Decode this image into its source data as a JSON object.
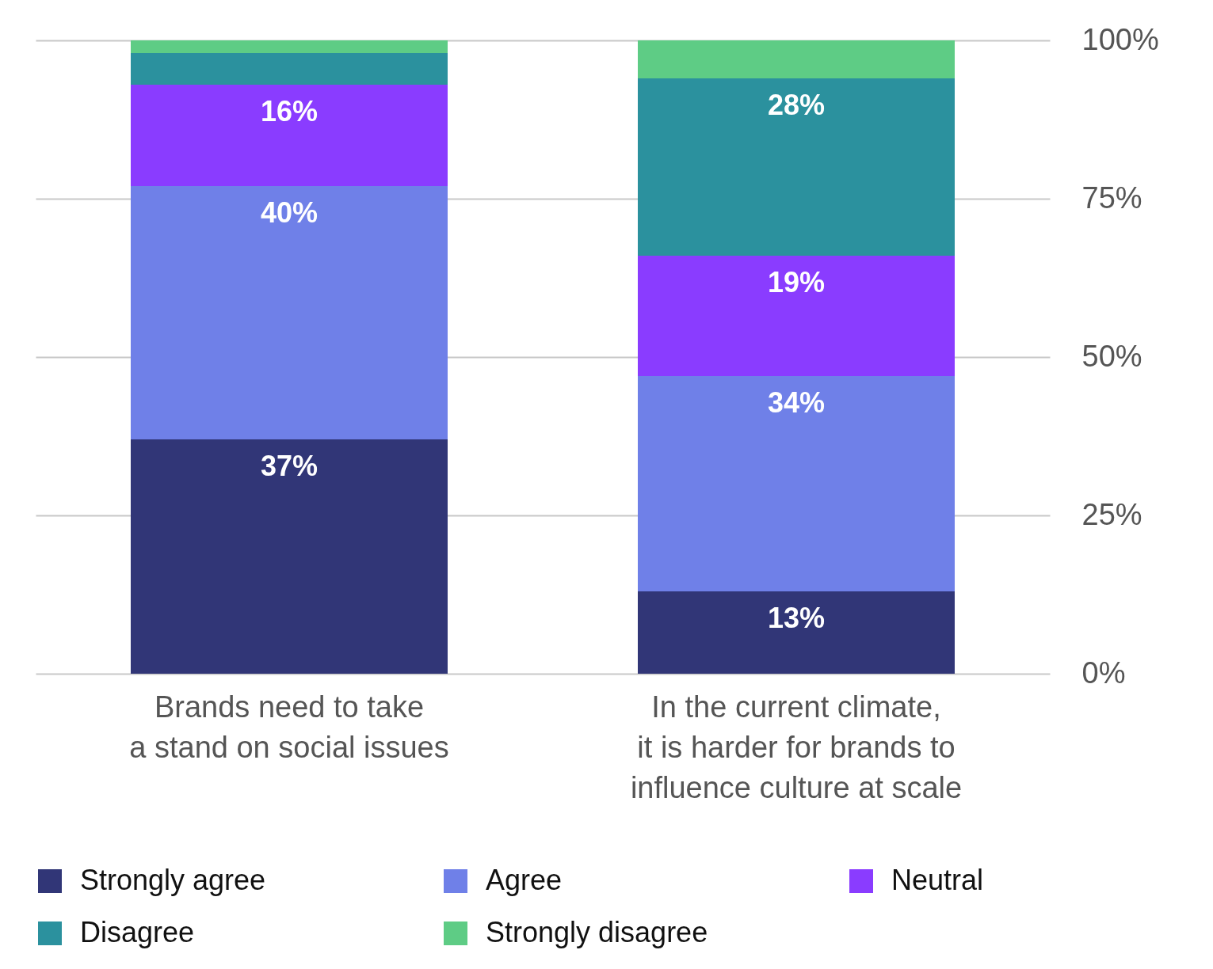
{
  "chart_data": {
    "type": "bar",
    "stacked": true,
    "categories": [
      "Brands need to take\na stand on social issues",
      "In the current climate,\nit is harder for brands to\ninfluence culture at scale"
    ],
    "series": [
      {
        "name": "Strongly agree",
        "color": "#313677",
        "values": [
          37,
          13
        ],
        "value_labels": [
          "37%",
          "13%"
        ]
      },
      {
        "name": "Agree",
        "color": "#6f80e8",
        "values": [
          40,
          34
        ],
        "value_labels": [
          "40%",
          "34%"
        ]
      },
      {
        "name": "Neutral",
        "color": "#8a3cff",
        "values": [
          16,
          19
        ],
        "value_labels": [
          "16%",
          "19%"
        ]
      },
      {
        "name": "Disagree",
        "color": "#2b919e",
        "values": [
          5,
          28
        ],
        "value_labels": [
          null,
          "28%"
        ]
      },
      {
        "name": "Strongly disagree",
        "color": "#5ecc85",
        "values": [
          2,
          6
        ],
        "value_labels": [
          null,
          null
        ]
      }
    ],
    "ylim": [
      0,
      100
    ],
    "yticks": [
      {
        "value": 0,
        "label": "0%"
      },
      {
        "value": 25,
        "label": "25%"
      },
      {
        "value": 50,
        "label": "50%"
      },
      {
        "value": 75,
        "label": "75%"
      },
      {
        "value": 100,
        "label": "100%"
      }
    ],
    "grid": "y",
    "legend": "bottom"
  }
}
